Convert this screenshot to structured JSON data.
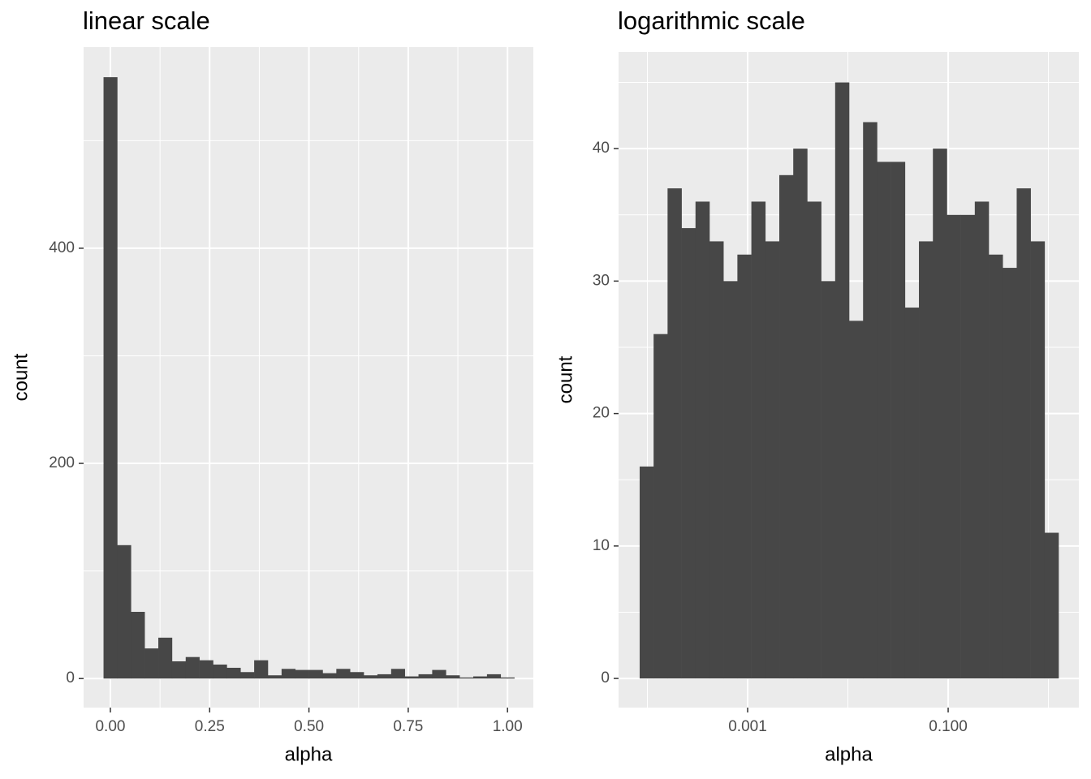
{
  "chart_data": [
    {
      "type": "histogram",
      "title": "linear scale",
      "x_label": "alpha",
      "y_label": "count",
      "color": "#474747",
      "grid": true,
      "xscale": "linear",
      "bins": [
        -0.01724,
        0.01724,
        0.05172,
        0.08621,
        0.12069,
        0.15517,
        0.18966,
        0.22414,
        0.25862,
        0.2931,
        0.32759,
        0.36207,
        0.39655,
        0.43103,
        0.46552,
        0.5,
        0.53448,
        0.56897,
        0.60345,
        0.63793,
        0.67241,
        0.7069,
        0.74138,
        0.77586,
        0.81034,
        0.84483,
        0.87931,
        0.91379,
        0.94828,
        0.98276,
        1.01724
      ],
      "values": [
        559,
        124,
        62,
        28,
        38,
        16,
        20,
        17,
        13,
        10,
        6,
        17,
        3,
        9,
        8,
        8,
        5,
        9,
        6,
        3,
        4,
        9,
        2,
        4,
        8,
        3,
        1,
        2,
        4,
        1
      ],
      "xlim": [
        -0.0674,
        1.065
      ],
      "ylim": [
        -27,
        587
      ],
      "xticks": [
        {
          "value": 0,
          "label": "0.00"
        },
        {
          "value": 0.25,
          "label": "0.25"
        },
        {
          "value": 0.5,
          "label": "0.50"
        },
        {
          "value": 0.75,
          "label": "0.75"
        },
        {
          "value": 1,
          "label": "1.00"
        }
      ],
      "yticks": [
        0,
        200,
        400
      ],
      "x_minor_ticks": [
        0.125,
        0.375,
        0.625,
        0.875
      ],
      "y_minor_ticks": [
        100,
        300,
        500
      ]
    },
    {
      "type": "histogram",
      "title": "logarithmic scale",
      "x_label": "alpha",
      "y_label": "count",
      "color": "#474747",
      "grid": true,
      "xscale": "log",
      "bins": [
        8.38e-05,
        0.0001154,
        0.000159,
        0.0002192,
        0.000302,
        0.0004163,
        0.0005735,
        0.0007904,
        0.0010894,
        0.001501,
        0.002069,
        0.002851,
        0.003929,
        0.005413,
        0.007461,
        0.01028,
        0.01417,
        0.01953,
        0.02691,
        0.03709,
        0.05111,
        0.07043,
        0.09705,
        0.1337,
        0.1843,
        0.2539,
        0.3499,
        0.4825,
        0.6646,
        0.916,
        1.262
      ],
      "values": [
        16,
        26,
        37,
        34,
        36,
        33,
        30,
        32,
        36,
        33,
        38,
        40,
        36,
        30,
        45,
        27,
        42,
        39,
        39,
        28,
        33,
        40,
        35,
        35,
        36,
        32,
        31,
        37,
        33,
        11
      ],
      "xlim": [
        5.16e-05,
        2.01
      ],
      "ylim": [
        -2.2,
        47.3
      ],
      "xticks": [
        0.001,
        {
          "value": 0.1,
          "label": "0.100"
        }
      ],
      "yticks": [
        0,
        10,
        20,
        30,
        40
      ],
      "x_minor_ticks": [
        0.0001,
        0.01,
        1
      ],
      "y_minor_ticks": [
        5,
        15,
        25,
        35,
        45
      ]
    }
  ]
}
